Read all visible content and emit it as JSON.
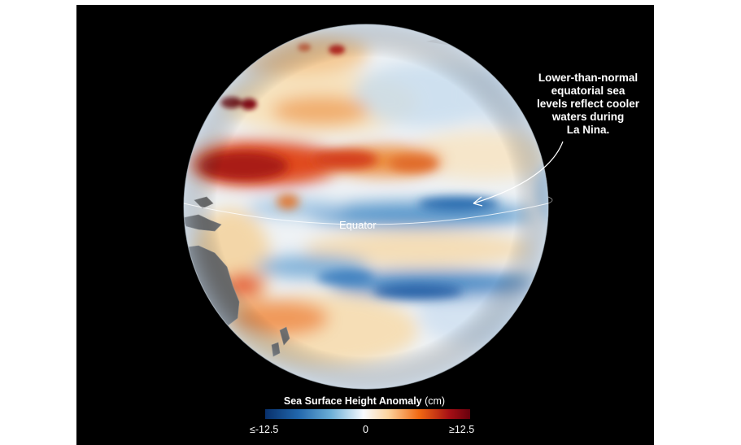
{
  "annotation": {
    "lines": [
      "Lower-than-normal",
      "equatorial sea",
      "levels reflect cooler",
      "waters during",
      "La Nina."
    ]
  },
  "equator_label": "Equator",
  "legend": {
    "title": "Sea Surface Height Anomaly",
    "unit": "(cm)",
    "ticks": [
      "≤-12.5",
      "0",
      "≥12.5"
    ],
    "colors": [
      "#08306b",
      "#2166ac",
      "#6baed6",
      "#f7fbff",
      "#fdd49e",
      "#f16913",
      "#a50f15",
      "#67000d"
    ]
  },
  "colors": {
    "background": "#000000",
    "land": "#707070",
    "neutral_ocean": "#eef2f5",
    "high_anomaly": "#c8200e",
    "low_anomaly": "#2166ac"
  }
}
